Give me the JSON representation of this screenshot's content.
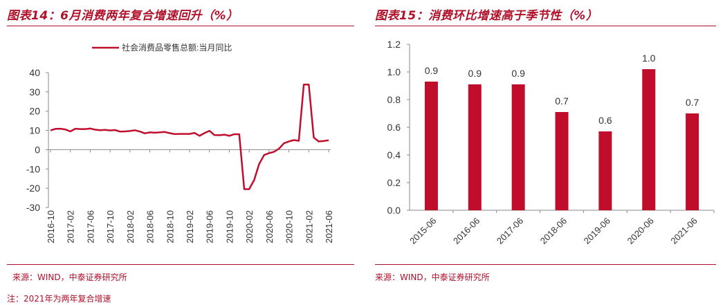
{
  "charts": [
    {
      "title": "图表14：6月消费两年复合增速回升（%）",
      "source": "来源：WIND，中泰证券研究所",
      "note": "注：2021年为两年复合增速"
    },
    {
      "title": "图表15：消费环比增速高于季节性（%）",
      "source": "来源：WIND，中泰证券研究所"
    }
  ],
  "chart_data": [
    {
      "type": "line",
      "legend": "top-center",
      "x": [
        "2016-10",
        "2016-11",
        "2016-12",
        "2017-01",
        "2017-02",
        "2017-03",
        "2017-04",
        "2017-05",
        "2017-06",
        "2017-07",
        "2017-08",
        "2017-09",
        "2017-10",
        "2017-11",
        "2017-12",
        "2018-01",
        "2018-02",
        "2018-03",
        "2018-04",
        "2018-05",
        "2018-06",
        "2018-07",
        "2018-08",
        "2018-09",
        "2018-10",
        "2018-11",
        "2018-12",
        "2019-01",
        "2019-02",
        "2019-03",
        "2019-04",
        "2019-05",
        "2019-06",
        "2019-07",
        "2019-08",
        "2019-09",
        "2019-10",
        "2019-11",
        "2019-12",
        "2020-01",
        "2020-02",
        "2020-03",
        "2020-04",
        "2020-05",
        "2020-06",
        "2020-07",
        "2020-08",
        "2020-09",
        "2020-10",
        "2020-11",
        "2020-12",
        "2021-01",
        "2021-02",
        "2021-03",
        "2021-04",
        "2021-05",
        "2021-06"
      ],
      "xticks": [
        "2016-10",
        "2017-02",
        "2017-06",
        "2017-10",
        "2018-02",
        "2018-06",
        "2018-10",
        "2019-02",
        "2019-06",
        "2019-10",
        "2020-02",
        "2020-06",
        "2020-10",
        "2021-02",
        "2021-06"
      ],
      "series": [
        {
          "name": "社会消费品零售总额:当月同比",
          "color": "#c00d2c",
          "values": [
            10.0,
            10.8,
            10.9,
            10.5,
            9.5,
            10.9,
            10.7,
            10.7,
            11.0,
            10.4,
            10.1,
            10.3,
            10.0,
            10.2,
            9.4,
            9.5,
            9.7,
            10.1,
            9.4,
            8.5,
            9.0,
            8.8,
            9.0,
            9.2,
            8.6,
            8.1,
            8.2,
            8.2,
            8.2,
            8.7,
            7.2,
            8.6,
            9.8,
            7.6,
            7.5,
            7.8,
            7.2,
            8.0,
            8.0,
            -20.5,
            -20.5,
            -15.8,
            -7.5,
            -2.8,
            -1.8,
            -1.1,
            0.5,
            3.3,
            4.3,
            5.0,
            4.6,
            33.8,
            33.8,
            6.3,
            4.3,
            4.5,
            4.9
          ]
        }
      ],
      "yticks": [
        "40",
        "30",
        "20",
        "10",
        "0",
        "-10",
        "-20",
        "-30"
      ],
      "ylim": [
        -30,
        40
      ]
    },
    {
      "type": "bar",
      "categories": [
        "2015-06",
        "2016-06",
        "2017-06",
        "2018-06",
        "2019-06",
        "2020-06",
        "2021-06"
      ],
      "values": [
        0.93,
        0.91,
        0.91,
        0.71,
        0.57,
        1.02,
        0.7
      ],
      "labels": [
        "0.9",
        "0.9",
        "0.9",
        "0.7",
        "0.6",
        "1.0",
        "0.7"
      ],
      "color": "#c00d2c",
      "yticks": [
        "1.2",
        "1.0",
        "0.8",
        "0.6",
        "0.4",
        "0.2",
        "0.0"
      ],
      "ylim": [
        0,
        1.2
      ]
    }
  ]
}
